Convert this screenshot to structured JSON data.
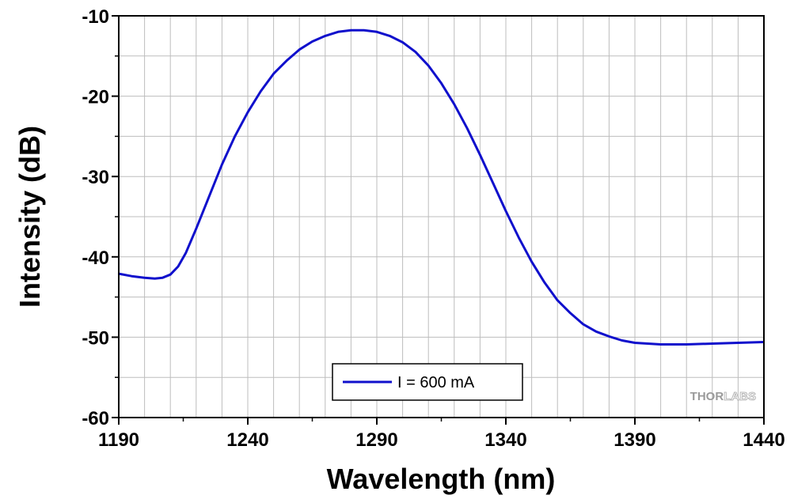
{
  "chart_data": {
    "type": "line",
    "title": "",
    "xlabel": "Wavelength (nm)",
    "ylabel": "Intensity (dB)",
    "xlim": [
      1190,
      1440
    ],
    "ylim": [
      -60,
      -10
    ],
    "xticks": [
      1190,
      1240,
      1290,
      1340,
      1390,
      1440
    ],
    "yticks": [
      -60,
      -50,
      -40,
      -30,
      -20,
      -10
    ],
    "xtick_labels": [
      "1190",
      "1240",
      "1290",
      "1340",
      "1390",
      "1440"
    ],
    "ytick_labels": [
      "-60",
      "-50",
      "-40",
      "-30",
      "-20",
      "-10"
    ],
    "grid": true,
    "legend_position": "bottom-center",
    "series": [
      {
        "name": "I = 600 mA",
        "color": "#1010cc",
        "x": [
          1190,
          1195,
          1200,
          1204,
          1207,
          1210,
          1213,
          1216,
          1220,
          1225,
          1230,
          1235,
          1240,
          1245,
          1250,
          1255,
          1260,
          1265,
          1270,
          1275,
          1280,
          1285,
          1290,
          1295,
          1300,
          1305,
          1310,
          1315,
          1320,
          1325,
          1330,
          1335,
          1340,
          1345,
          1350,
          1355,
          1360,
          1365,
          1370,
          1375,
          1380,
          1385,
          1390,
          1395,
          1400,
          1410,
          1420,
          1430,
          1440
        ],
        "y": [
          -42.1,
          -42.4,
          -42.6,
          -42.7,
          -42.6,
          -42.2,
          -41.2,
          -39.5,
          -36.5,
          -32.5,
          -28.5,
          -25.0,
          -22.0,
          -19.4,
          -17.2,
          -15.6,
          -14.2,
          -13.2,
          -12.5,
          -12.0,
          -11.8,
          -11.8,
          -12.0,
          -12.5,
          -13.3,
          -14.5,
          -16.2,
          -18.4,
          -21.0,
          -24.0,
          -27.3,
          -30.8,
          -34.3,
          -37.6,
          -40.6,
          -43.2,
          -45.4,
          -47.0,
          -48.4,
          -49.3,
          -49.9,
          -50.4,
          -50.7,
          -50.8,
          -50.9,
          -50.9,
          -50.8,
          -50.7,
          -50.6
        ]
      }
    ]
  },
  "branding": {
    "logo_text": "THORLABS",
    "logo_bold_part": "THOR",
    "logo_light_part": "LABS"
  }
}
